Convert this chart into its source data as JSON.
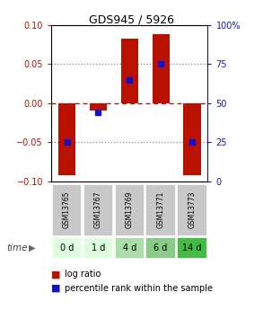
{
  "title": "GDS945 / 5926",
  "samples": [
    "GSM13765",
    "GSM13767",
    "GSM13769",
    "GSM13771",
    "GSM13773"
  ],
  "time_labels": [
    "0 d",
    "1 d",
    "4 d",
    "6 d",
    "14 d"
  ],
  "log_ratios": [
    -0.092,
    -0.01,
    0.082,
    0.088,
    -0.092
  ],
  "percentile_ranks": [
    25,
    44,
    65,
    75,
    25
  ],
  "ylim": [
    -0.1,
    0.1
  ],
  "yticks_left": [
    -0.1,
    -0.05,
    0,
    0.05,
    0.1
  ],
  "yticks_right": [
    0,
    25,
    50,
    75,
    100
  ],
  "bar_color": "#bb1100",
  "dot_color": "#1111cc",
  "time_colors": [
    "#ddffdd",
    "#ddffdd",
    "#aaddaa",
    "#88cc88",
    "#44bb44"
  ],
  "gsm_bg_color": "#c8c8c8",
  "grid_color": "#aaaaaa",
  "zero_line_color": "#cc0000",
  "bar_width": 0.55
}
